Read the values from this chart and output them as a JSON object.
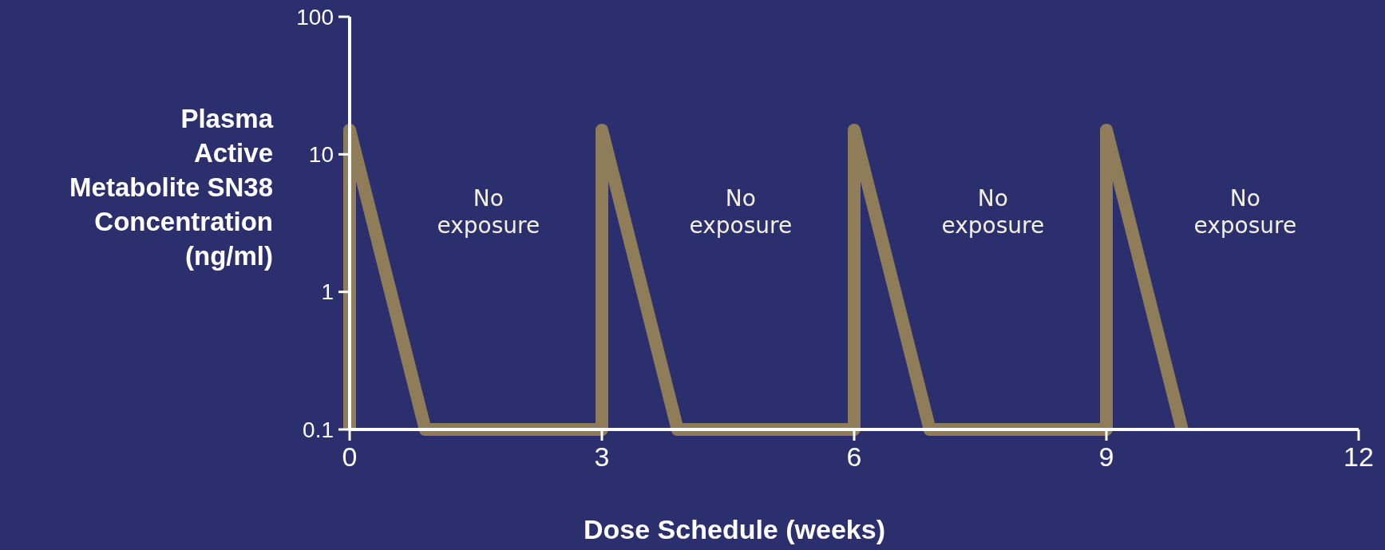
{
  "chart_data": {
    "type": "line",
    "xlabel": "Dose Schedule (weeks)",
    "ylabel": "Plasma\nActive\nMetabolite SN38\nConcentration\n(ng/ml)",
    "log": "y",
    "xlim": [
      0,
      12
    ],
    "xticks": [
      0,
      3,
      6,
      9,
      12
    ],
    "ylim": [
      0.1,
      100
    ],
    "yticks": [
      0.1,
      1,
      10,
      100
    ],
    "grid": false,
    "marker": "none",
    "line_style": "solid",
    "series": [
      {
        "color": "#8e7d58",
        "x": [
          0,
          0,
          0.9,
          3,
          3,
          3.9,
          6,
          6,
          6.9,
          9,
          9,
          9.9
        ],
        "values": [
          0.1,
          15,
          0.1,
          0.1,
          15,
          0.1,
          0.1,
          15,
          0.1,
          0.1,
          15,
          0.1
        ]
      }
    ],
    "annotations": [
      "No\nexposure",
      "No\nexposure",
      "No\nexposure",
      "No\nexposure"
    ]
  }
}
